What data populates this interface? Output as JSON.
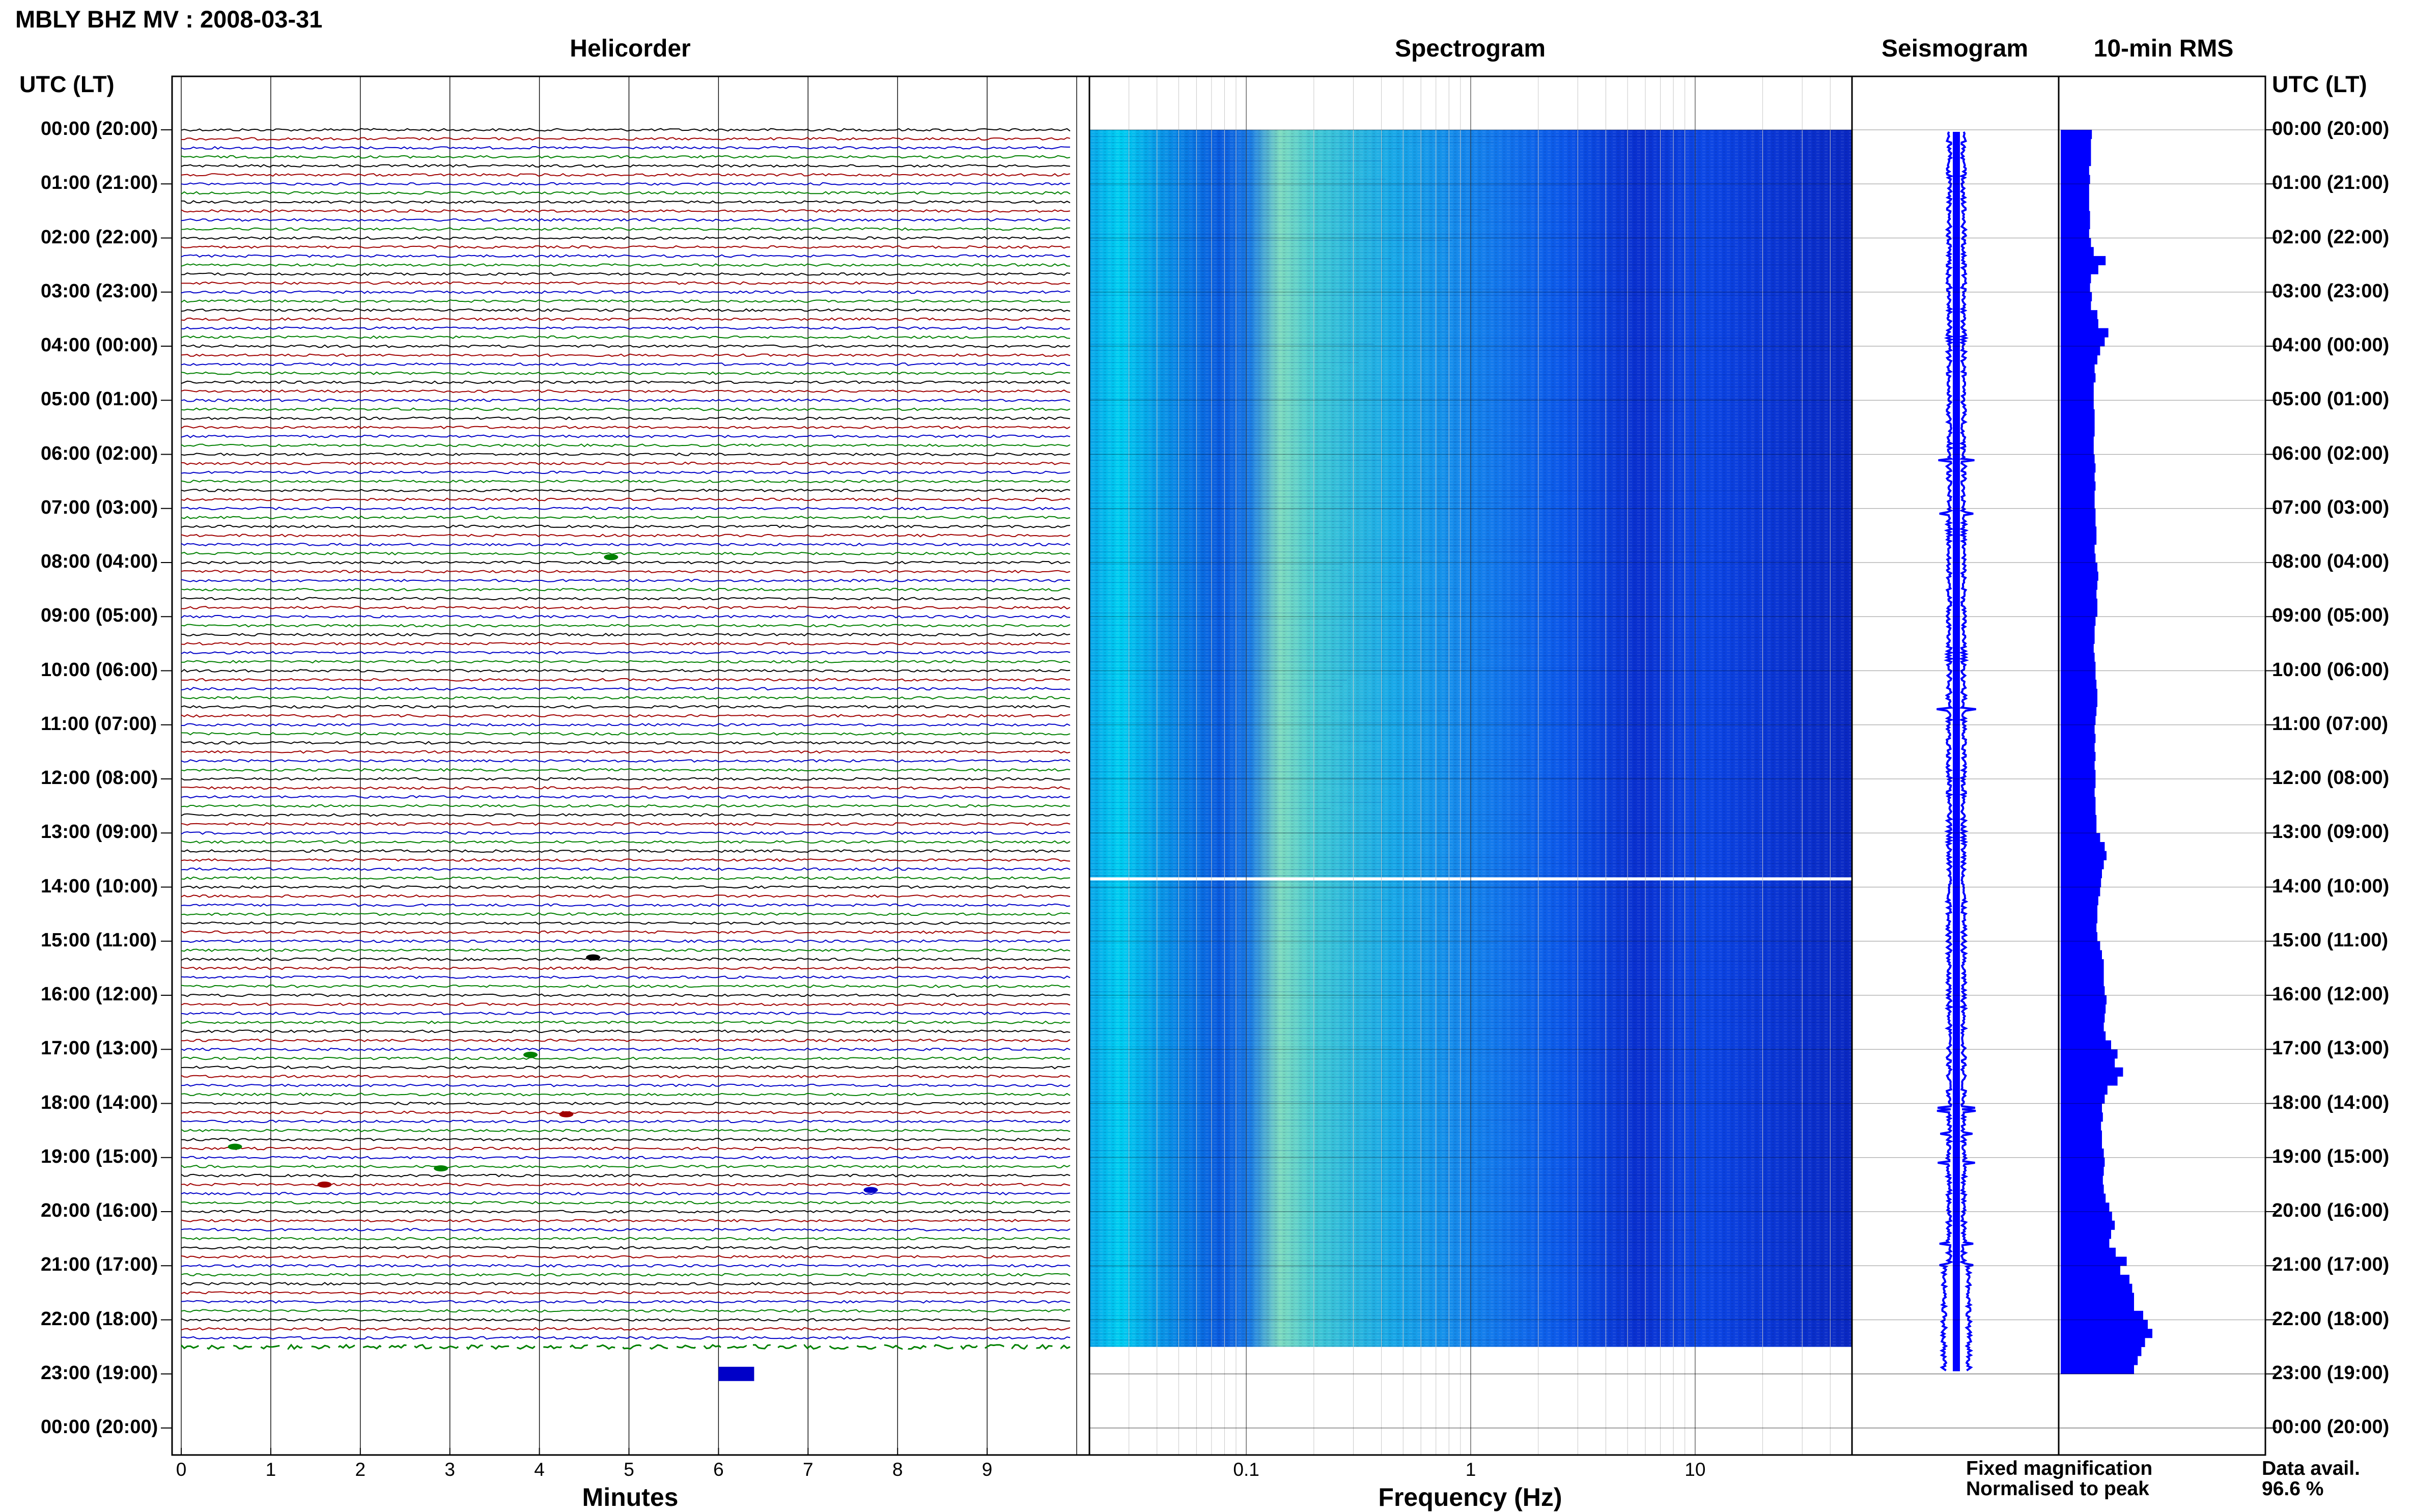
{
  "header": {
    "station": "MBLY BHZ MV : 2008-03-31",
    "utc_header_left": "UTC (LT)",
    "utc_header_right": "UTC (LT)"
  },
  "panels": {
    "helicorder": "Helicorder",
    "spectrogram": "Spectrogram",
    "seismogram": "Seismogram",
    "rms": "10-min RMS"
  },
  "time_labels": [
    "00:00 (20:00)",
    "01:00 (21:00)",
    "02:00 (22:00)",
    "03:00 (23:00)",
    "04:00 (00:00)",
    "05:00 (01:00)",
    "06:00 (02:00)",
    "07:00 (03:00)",
    "08:00 (04:00)",
    "09:00 (05:00)",
    "10:00 (06:00)",
    "11:00 (07:00)",
    "12:00 (08:00)",
    "13:00 (09:00)",
    "14:00 (10:00)",
    "15:00 (11:00)",
    "16:00 (12:00)",
    "17:00 (13:00)",
    "18:00 (14:00)",
    "19:00 (15:00)",
    "20:00 (16:00)",
    "21:00 (17:00)",
    "22:00 (18:00)",
    "23:00 (19:00)",
    "00:00 (20:00)"
  ],
  "helicorder_axis": {
    "label": "Minutes",
    "ticks": [
      "0",
      "1",
      "2",
      "3",
      "4",
      "5",
      "6",
      "7",
      "8",
      "9"
    ]
  },
  "spectrogram_axis": {
    "label": "Frequency (Hz)",
    "ticks": [
      "0.1",
      "1",
      "10"
    ]
  },
  "legend": {
    "fixed": "Fixed magnification",
    "normalised": "Normalised to peak",
    "data_avail_label": "Data avail.",
    "data_avail_value": "96.6 %"
  },
  "colors": {
    "trace_cycle": [
      "#000000",
      "#a00000",
      "#0000c8",
      "#008000"
    ],
    "fixed_text": "#0000ff",
    "normalised_text": "#ff0000",
    "rms_bar": "#0000ff"
  },
  "chart_data": [
    {
      "type": "heatmap",
      "title": "Helicorder",
      "xlabel": "Minutes",
      "x_ticks": [
        "0",
        "1",
        "2",
        "3",
        "4",
        "5",
        "6",
        "7",
        "8",
        "9"
      ],
      "xlim": [
        0,
        10
      ],
      "rows_per_hour": 6,
      "data_end_hour_utc": 22.7
    },
    {
      "type": "heatmap",
      "title": "Spectrogram",
      "xlabel": "Frequency (Hz)",
      "x_scale": "log",
      "x_ticks": [
        "0.1",
        "1",
        "10"
      ],
      "xlim": [
        0.02,
        50
      ],
      "data_end_hour_utc": 22.5
    },
    {
      "type": "bar",
      "title": "10-min RMS",
      "orientation": "horizontal",
      "bin_minutes": 10,
      "values": [
        0.34,
        0.33,
        0.33,
        0.33,
        0.31,
        0.32,
        0.31,
        0.31,
        0.31,
        0.32,
        0.32,
        0.31,
        0.33,
        0.36,
        0.49,
        0.41,
        0.33,
        0.32,
        0.34,
        0.33,
        0.4,
        0.41,
        0.52,
        0.48,
        0.43,
        0.4,
        0.37,
        0.38,
        0.36,
        0.36,
        0.36,
        0.37,
        0.37,
        0.37,
        0.36,
        0.36,
        0.37,
        0.38,
        0.37,
        0.38,
        0.37,
        0.37,
        0.38,
        0.38,
        0.39,
        0.39,
        0.37,
        0.38,
        0.4,
        0.41,
        0.4,
        0.39,
        0.4,
        0.4,
        0.38,
        0.37,
        0.37,
        0.36,
        0.37,
        0.38,
        0.38,
        0.39,
        0.4,
        0.4,
        0.39,
        0.38,
        0.37,
        0.38,
        0.37,
        0.38,
        0.37,
        0.38,
        0.38,
        0.37,
        0.38,
        0.38,
        0.39,
        0.39,
        0.43,
        0.48,
        0.5,
        0.47,
        0.45,
        0.44,
        0.43,
        0.41,
        0.4,
        0.4,
        0.39,
        0.4,
        0.43,
        0.45,
        0.47,
        0.47,
        0.47,
        0.48,
        0.5,
        0.49,
        0.48,
        0.47,
        0.49,
        0.55,
        0.62,
        0.59,
        0.68,
        0.62,
        0.51,
        0.48,
        0.45,
        0.46,
        0.44,
        0.45,
        0.45,
        0.47,
        0.48,
        0.47,
        0.46,
        0.47,
        0.49,
        0.53,
        0.56,
        0.59,
        0.55,
        0.53,
        0.6,
        0.72,
        0.65,
        0.75,
        0.78,
        0.8,
        0.8,
        0.9,
        0.95,
        1.0,
        0.92,
        0.88,
        0.84,
        0.8
      ]
    }
  ]
}
